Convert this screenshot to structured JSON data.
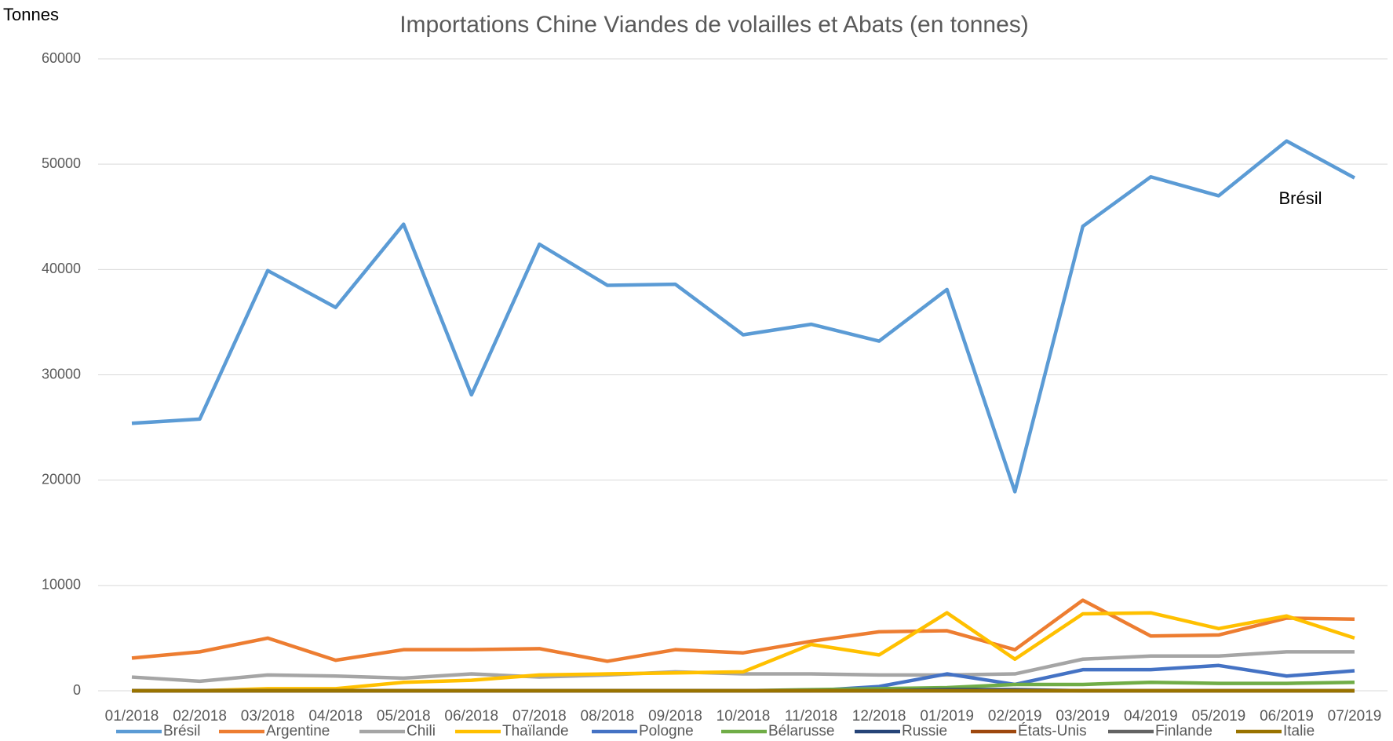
{
  "chart_data": {
    "type": "line",
    "title": "Importations Chine Viandes de volailles et Abats (en tonnes)",
    "y_label": "Tonnes",
    "annotations": [
      "Brésil"
    ],
    "categories": [
      "01/2018",
      "02/2018",
      "03/2018",
      "04/2018",
      "05/2018",
      "06/2018",
      "07/2018",
      "08/2018",
      "09/2018",
      "10/2018",
      "11/2018",
      "12/2018",
      "01/2019",
      "02/2019",
      "03/2019",
      "04/2019",
      "05/2019",
      "06/2019",
      "07/2019"
    ],
    "ylim": [
      0,
      60000
    ],
    "yticks": [
      0,
      10000,
      20000,
      30000,
      40000,
      50000,
      60000
    ],
    "grid": true,
    "legend": "bottom",
    "series": [
      {
        "name": "Brésil",
        "color": "#5b9bd5",
        "values": [
          25400,
          25800,
          39900,
          36400,
          44300,
          28100,
          42400,
          38500,
          38600,
          33800,
          34800,
          33200,
          38100,
          18900,
          44100,
          48800,
          47000,
          52200,
          48700
        ]
      },
      {
        "name": "Argentine",
        "color": "#ed7d31",
        "values": [
          3100,
          3700,
          5000,
          2900,
          3900,
          3900,
          4000,
          2800,
          3900,
          3600,
          4700,
          5600,
          5700,
          3900,
          8600,
          5200,
          5300,
          6900,
          6800
        ]
      },
      {
        "name": "Chili",
        "color": "#a5a5a5",
        "values": [
          1300,
          900,
          1500,
          1400,
          1200,
          1600,
          1300,
          1500,
          1800,
          1600,
          1600,
          1500,
          1500,
          1600,
          3000,
          3300,
          3300,
          3700,
          3700
        ]
      },
      {
        "name": "Thaïlande",
        "color": "#ffc000",
        "values": [
          0,
          0,
          200,
          200,
          800,
          1000,
          1500,
          1600,
          1700,
          1800,
          4400,
          3400,
          7400,
          3000,
          7300,
          7400,
          5900,
          7100,
          5000
        ]
      },
      {
        "name": "Pologne",
        "color": "#4472c4",
        "values": [
          0,
          0,
          0,
          0,
          0,
          0,
          0,
          0,
          0,
          0,
          0,
          400,
          1600,
          600,
          2000,
          2000,
          2400,
          1400,
          1900
        ]
      },
      {
        "name": "Bélarusse",
        "color": "#70ad47",
        "values": [
          0,
          0,
          0,
          0,
          0,
          0,
          0,
          0,
          0,
          0,
          100,
          200,
          300,
          600,
          600,
          800,
          700,
          700,
          800
        ]
      },
      {
        "name": "Russie",
        "color": "#264478",
        "values": [
          0,
          0,
          0,
          0,
          0,
          0,
          0,
          0,
          0,
          0,
          0,
          0,
          100,
          100,
          0,
          0,
          0,
          0,
          0
        ]
      },
      {
        "name": "États-Unis",
        "color": "#9e480e",
        "values": [
          0,
          0,
          0,
          0,
          0,
          0,
          0,
          0,
          0,
          0,
          0,
          0,
          0,
          0,
          0,
          0,
          0,
          0,
          0
        ]
      },
      {
        "name": "Finlande",
        "color": "#636363",
        "values": [
          0,
          0,
          0,
          0,
          0,
          0,
          0,
          0,
          0,
          0,
          0,
          0,
          0,
          0,
          0,
          0,
          0,
          0,
          0
        ]
      },
      {
        "name": "Italie",
        "color": "#997300",
        "values": [
          0,
          0,
          0,
          0,
          0,
          0,
          0,
          0,
          0,
          0,
          0,
          0,
          0,
          0,
          0,
          0,
          0,
          0,
          0
        ]
      }
    ]
  }
}
